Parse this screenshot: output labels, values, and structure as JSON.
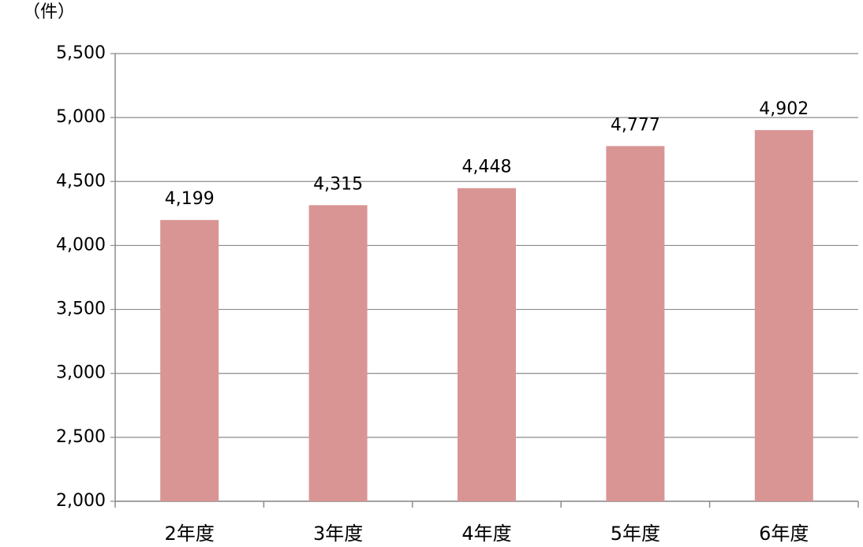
{
  "chart_data": {
    "type": "bar",
    "y_label": "（件）",
    "categories": [
      "2年度",
      "3年度",
      "4年度",
      "5年度",
      "6年度"
    ],
    "values": [
      4199,
      4315,
      4448,
      4777,
      4902
    ],
    "value_labels": [
      "4,199",
      "4,315",
      "4,448",
      "4,777",
      "4,902"
    ],
    "color": "#d99594",
    "ylim": [
      2000,
      5500
    ],
    "yticks": [
      {
        "value": 2000,
        "label": "2,000"
      },
      {
        "value": 2500,
        "label": "2,500"
      },
      {
        "value": 3000,
        "label": "3,000"
      },
      {
        "value": 3500,
        "label": "3,500"
      },
      {
        "value": 4000,
        "label": "4,000"
      },
      {
        "value": 4500,
        "label": "4,500"
      },
      {
        "value": 5000,
        "label": "5,000"
      },
      {
        "value": 5500,
        "label": "5,500"
      }
    ],
    "grid": true
  }
}
